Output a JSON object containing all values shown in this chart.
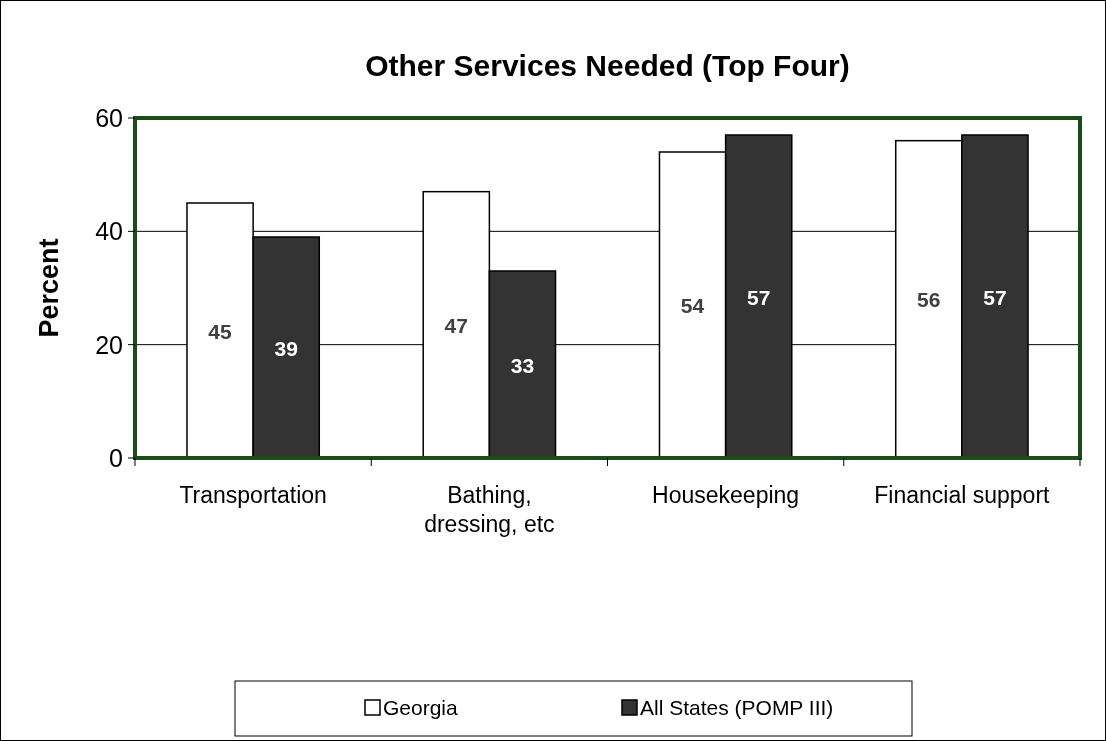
{
  "chart_data": {
    "type": "bar",
    "title": "Other Services Needed (Top Four)",
    "ylabel": "Percent",
    "categories": [
      "Transportation",
      "Bathing, dressing, etc",
      "Housekeeping",
      "Financial support"
    ],
    "series": [
      {
        "name": "Georgia",
        "color": "#ffffff",
        "values": [
          45,
          47,
          54,
          56
        ]
      },
      {
        "name": "All States (POMP III)",
        "color": "#333333",
        "values": [
          39,
          33,
          57,
          57
        ]
      }
    ],
    "ylim": [
      0,
      60
    ],
    "yticks": [
      0,
      20,
      40,
      60
    ],
    "grid": "y",
    "legend": "bottom",
    "data_labels": true
  }
}
